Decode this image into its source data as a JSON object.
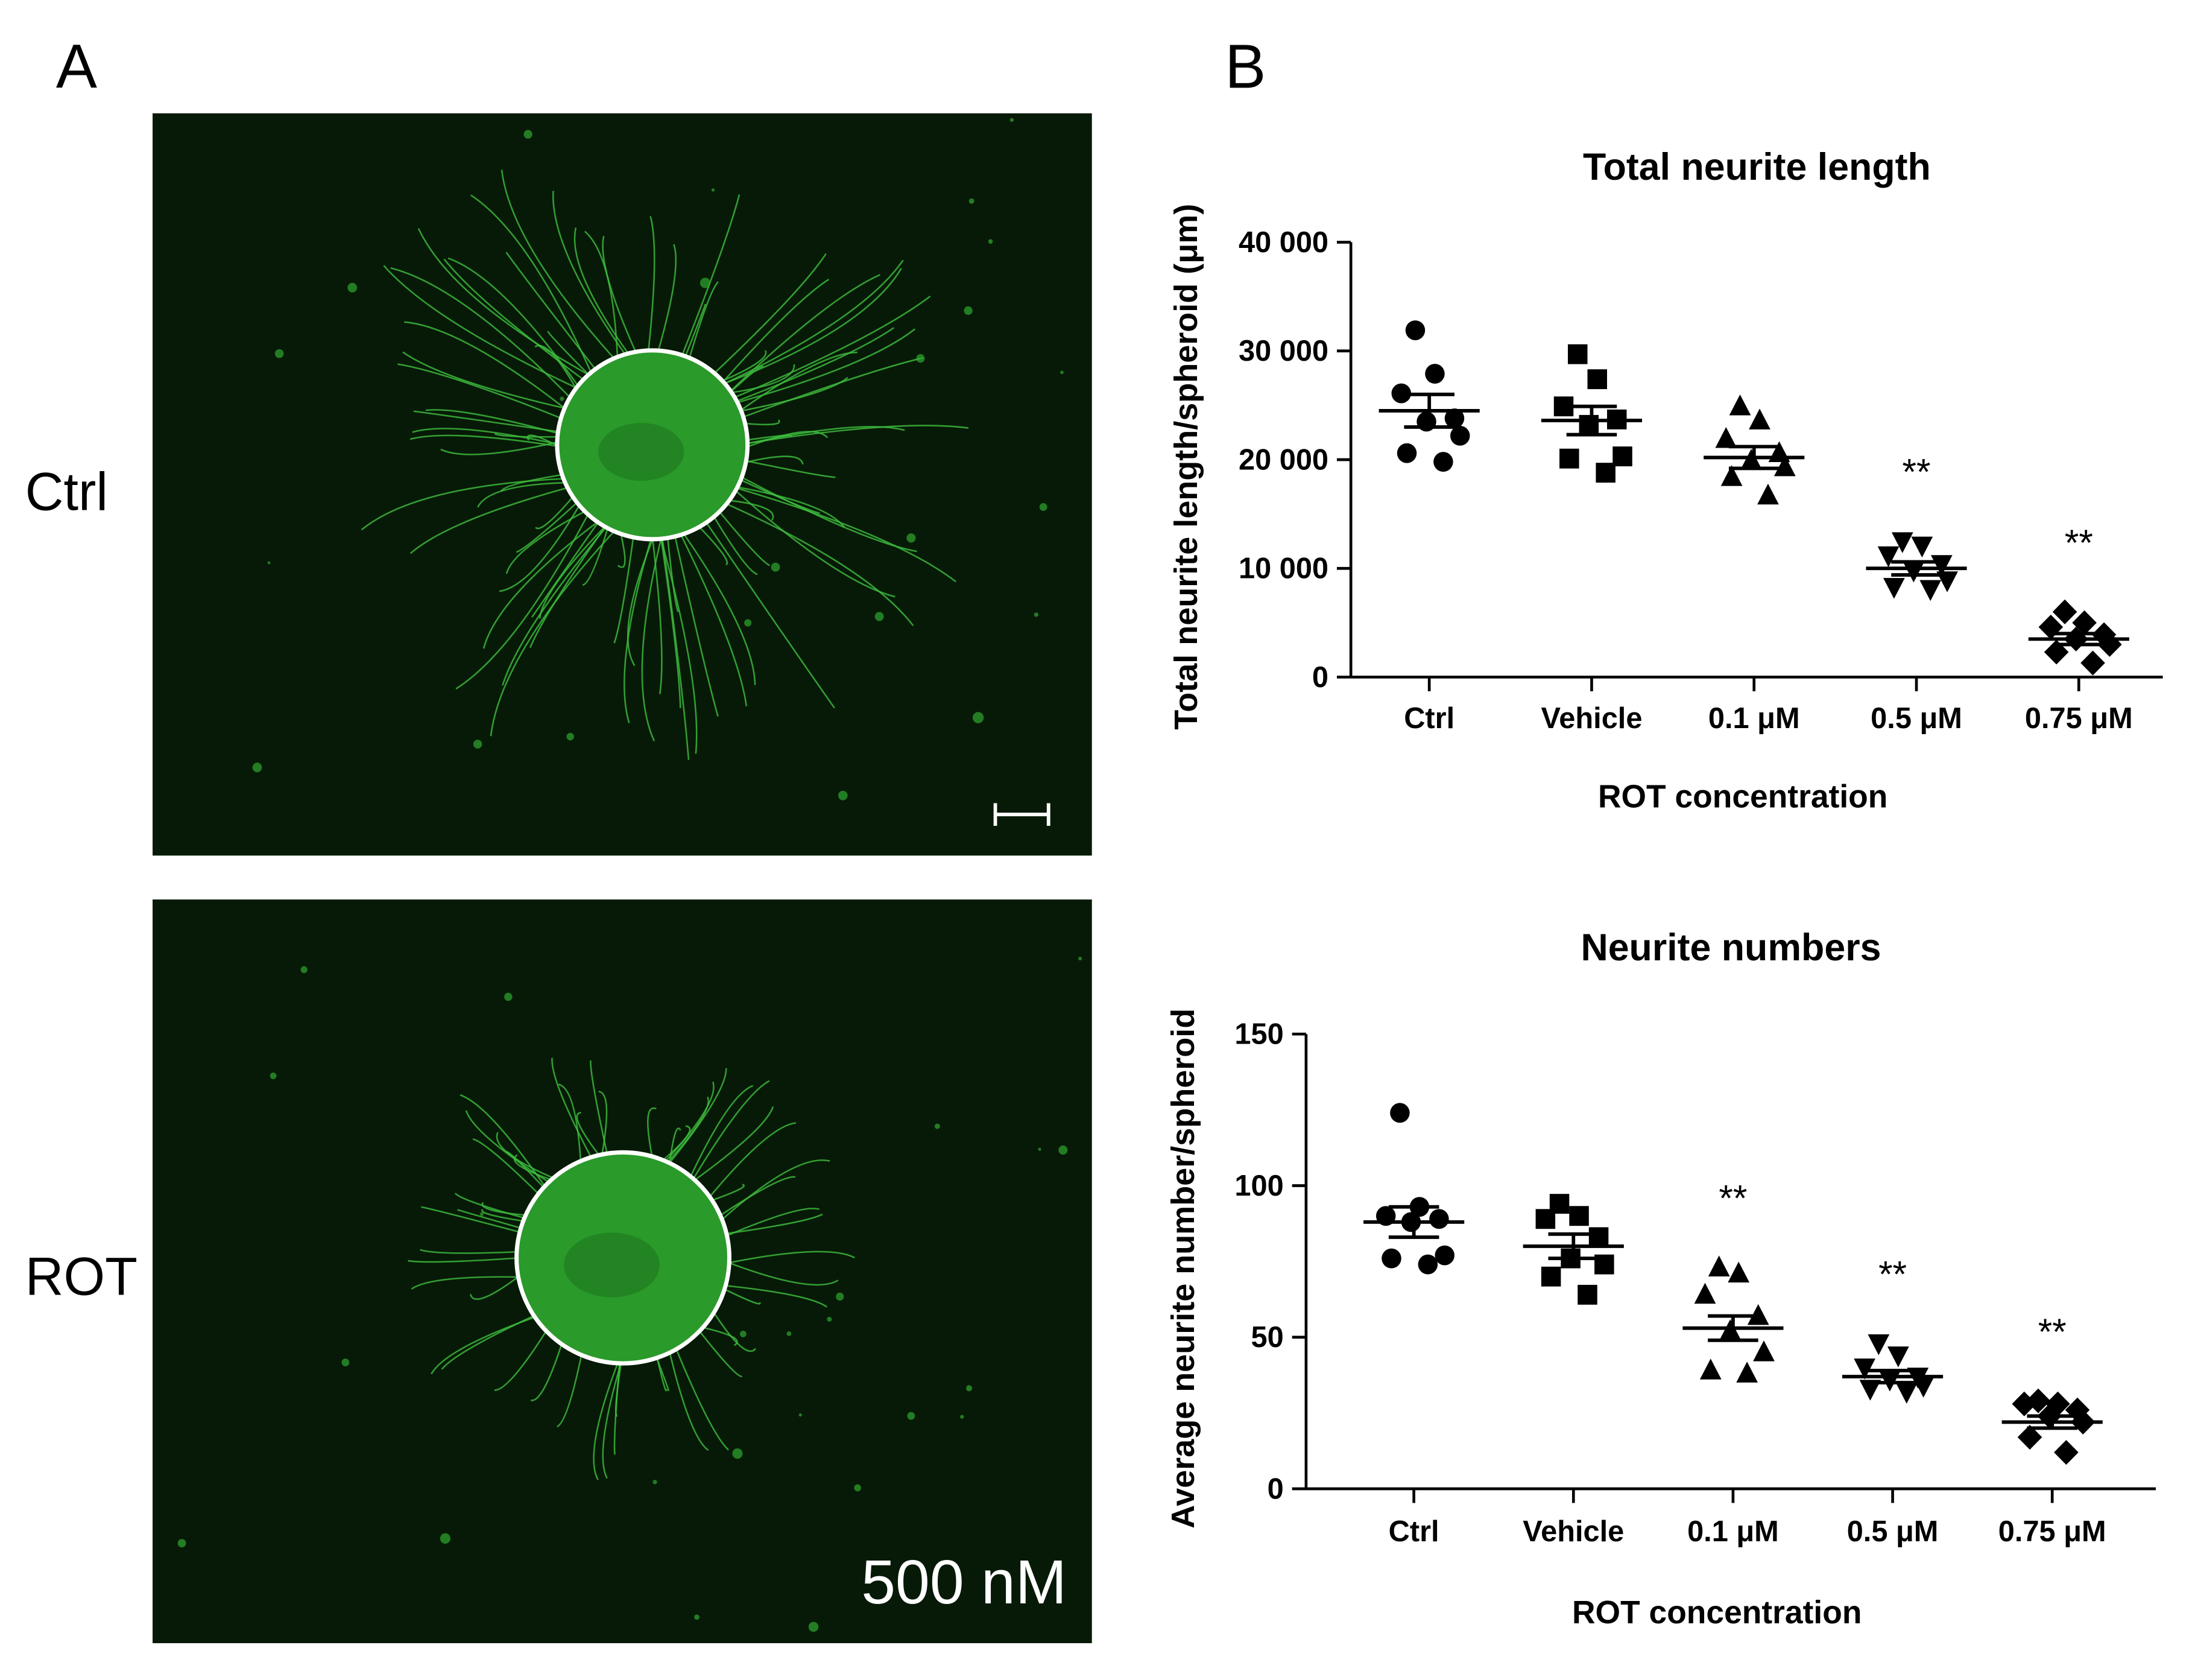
{
  "figure": {
    "panel_labels": [
      "A",
      "B"
    ],
    "image_labels": [
      "Ctrl",
      "ROT"
    ],
    "image_annotation": "500 nM"
  },
  "chart_data": [
    {
      "type": "dotplot",
      "title": "Total neurite length",
      "xlabel": "ROT concentration",
      "ylabel": "Total neurite length/spheroid (μm)",
      "color": "#000000",
      "categories": [
        "Ctrl",
        "Vehicle",
        "0.1 μM",
        "0.5 μM",
        "0.75 μM"
      ],
      "ylim": [
        0,
        40000
      ],
      "yticks": [
        0,
        {
          "value": 10000,
          "label": "10 000"
        },
        {
          "value": 20000,
          "label": "20 000"
        },
        {
          "value": 30000,
          "label": "30 000"
        },
        {
          "value": 40000,
          "label": "40 000"
        }
      ],
      "groups": [
        {
          "marker": "circle",
          "points": [
            31900,
            27900,
            26100,
            23800,
            23500,
            22200,
            20600,
            19800
          ],
          "mean": 24500,
          "sem": 1500
        },
        {
          "marker": "square",
          "points": [
            29700,
            27400,
            24900,
            23700,
            23200,
            20300,
            20100,
            18800
          ],
          "mean": 23600,
          "sem": 1300
        },
        {
          "marker": "triangle",
          "points": [
            24900,
            23600,
            21900,
            20600,
            19900,
            19300,
            18400,
            16700
          ],
          "mean": 20200,
          "sem": 1000
        },
        {
          "marker": "triangle-down",
          "points": [
            12500,
            12100,
            11200,
            10400,
            9800,
            8900,
            8300,
            8100
          ],
          "mean": 10000,
          "sem": 600,
          "annotation": "**"
        },
        {
          "marker": "diamond",
          "points": [
            6000,
            5000,
            4600,
            3900,
            3500,
            3000,
            2300,
            1300
          ],
          "mean": 3500,
          "sem": 500,
          "annotation": "**"
        }
      ]
    },
    {
      "type": "dotplot",
      "title": "Neurite numbers",
      "xlabel": "ROT concentration",
      "ylabel": "Average neurite number/spheroid",
      "color": "#000000",
      "categories": [
        "Ctrl",
        "Vehicle",
        "0.1 μM",
        "0.5 μM",
        "0.75 μM"
      ],
      "ylim": [
        0,
        150
      ],
      "yticks": [
        0,
        50,
        100,
        150
      ],
      "groups": [
        {
          "marker": "circle",
          "points": [
            124,
            93,
            90,
            89,
            88,
            77,
            76,
            74
          ],
          "mean": 88,
          "sem": 5
        },
        {
          "marker": "square",
          "points": [
            94,
            90,
            89,
            83,
            76,
            74,
            70,
            64
          ],
          "mean": 80,
          "sem": 4
        },
        {
          "marker": "triangle",
          "points": [
            73,
            71,
            64,
            57,
            52,
            45,
            39,
            38
          ],
          "mean": 53,
          "sem": 4,
          "annotation": "**"
        },
        {
          "marker": "triangle-down",
          "points": [
            48,
            44,
            40,
            37,
            36,
            34,
            33,
            32
          ],
          "mean": 37,
          "sem": 2,
          "annotation": "**"
        },
        {
          "marker": "diamond",
          "points": [
            29,
            28,
            28,
            26,
            24,
            22,
            17,
            12
          ],
          "mean": 22,
          "sem": 2,
          "annotation": "**"
        }
      ]
    }
  ]
}
